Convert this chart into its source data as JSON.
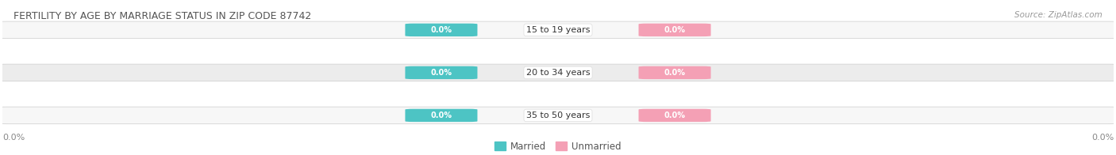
{
  "title": "FERTILITY BY AGE BY MARRIAGE STATUS IN ZIP CODE 87742",
  "source_text": "Source: ZipAtlas.com",
  "categories": [
    "15 to 19 years",
    "20 to 34 years",
    "35 to 50 years"
  ],
  "married_values": [
    0.0,
    0.0,
    0.0
  ],
  "unmarried_values": [
    0.0,
    0.0,
    0.0
  ],
  "married_color": "#4dc4c4",
  "unmarried_color": "#f4a0b5",
  "row_color": "#eeeeee",
  "row_edge_color": "#dddddd",
  "title_color": "#555555",
  "source_color": "#999999",
  "value_label_color": "#ffffff",
  "category_label_color": "#333333",
  "axis_value_color": "#888888",
  "legend_color": "#555555",
  "legend_married": "Married",
  "legend_unmarried": "Unmarried",
  "background_color": "#ffffff",
  "row_bg_light": "#f7f7f7",
  "row_bg_dark": "#ececec"
}
